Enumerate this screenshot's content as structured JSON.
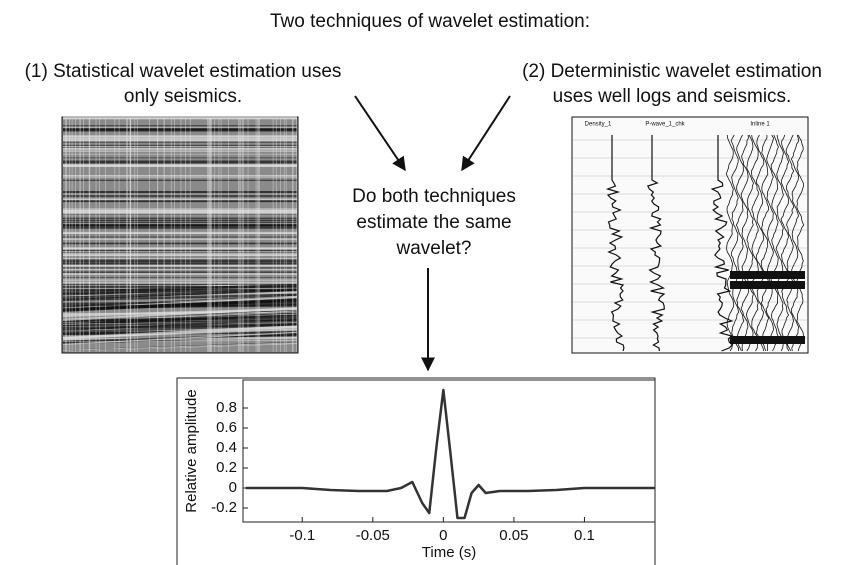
{
  "title": "Two techniques of wavelet estimation:",
  "left": {
    "label_lines": [
      "(1) Statistical wavelet estimation uses",
      "only seismics."
    ]
  },
  "right": {
    "label_lines": [
      "(2) Deterministic wavelet estimation",
      "uses well logs and seismics."
    ],
    "log_labels": [
      "Density_1",
      "P-wave_1_chk",
      "Inline 1"
    ]
  },
  "question": {
    "lines": [
      "Do both techniques",
      "estimate the same",
      "wavelet?"
    ]
  },
  "chart_data": {
    "type": "line",
    "x_label": "Time (s)",
    "y_label": "Relative amplitude",
    "x": [
      -0.14,
      -0.1,
      -0.08,
      -0.06,
      -0.04,
      -0.03,
      -0.022,
      -0.015,
      -0.01,
      -0.005,
      0,
      0.005,
      0.01,
      0.015,
      0.02,
      0.025,
      0.03,
      0.04,
      0.06,
      0.08,
      0.1,
      0.15
    ],
    "values": [
      0,
      0,
      -0.02,
      -0.03,
      -0.03,
      0,
      0.06,
      -0.15,
      -0.25,
      0.4,
      0.98,
      0.35,
      -0.3,
      -0.3,
      -0.05,
      0.03,
      -0.05,
      -0.03,
      -0.03,
      -0.02,
      0,
      0
    ],
    "color": "#333333",
    "xlim": [
      -0.142,
      0.15
    ],
    "ylim": [
      -0.34,
      1.08
    ],
    "xticks": [
      -0.1,
      -0.05,
      0,
      0.05,
      0.1
    ],
    "yticks": [
      -0.2,
      0,
      0.2,
      0.4,
      0.6,
      0.8
    ]
  }
}
